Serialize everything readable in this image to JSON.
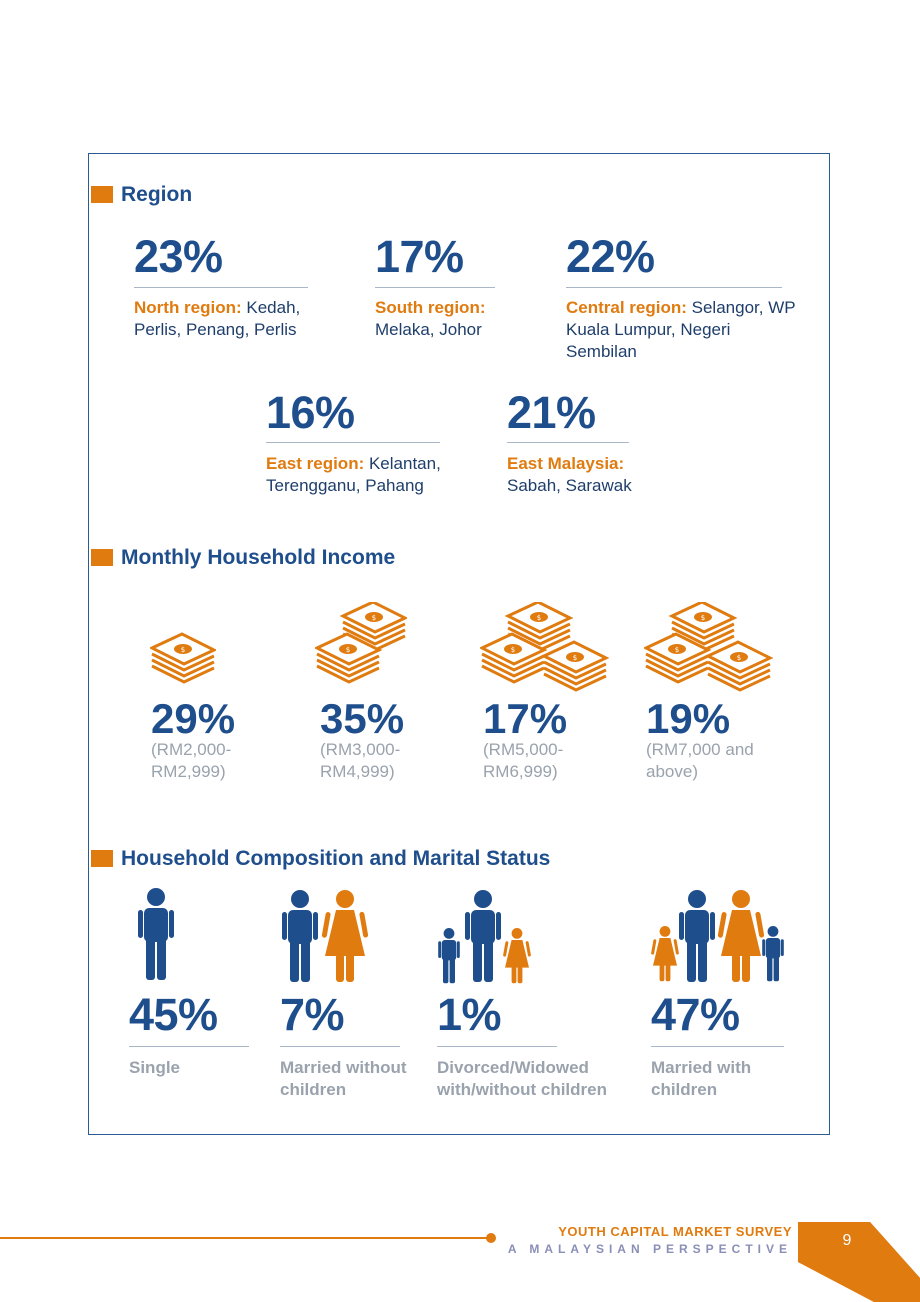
{
  "region": {
    "title": "Region",
    "items": [
      {
        "pct": "23%",
        "label": "North region:",
        "rest": " Kedah, Perlis, Penang, Perlis"
      },
      {
        "pct": "17%",
        "label": "South region:",
        "rest": " Melaka, Johor"
      },
      {
        "pct": "22%",
        "label": "Central region:",
        "rest": " Selangor, WP Kuala Lumpur, Negeri Sembilan"
      },
      {
        "pct": "16%",
        "label": "East region:",
        "rest": " Kelantan, Terengganu, Pahang"
      },
      {
        "pct": "21%",
        "label": "East Malaysia:",
        "rest": " Sabah, Sarawak"
      }
    ]
  },
  "income": {
    "title": "Monthly Household Income",
    "items": [
      {
        "pct": "29%",
        "range": "(RM2,000-RM2,999)"
      },
      {
        "pct": "35%",
        "range": "(RM3,000-RM4,999)"
      },
      {
        "pct": "17%",
        "range": "(RM5,000-RM6,999)"
      },
      {
        "pct": "19%",
        "range": "(RM7,000 and above)"
      }
    ],
    "icon": "money-stack-icon"
  },
  "household": {
    "title": "Household Composition and Marital Status",
    "items": [
      {
        "pct": "45%",
        "label": "Single",
        "icon": "single-person-icon"
      },
      {
        "pct": "7%",
        "label": "Married without children",
        "icon": "couple-icon"
      },
      {
        "pct": "1%",
        "label": "Divorced/Widowed with/without children",
        "icon": "single-parent-icon"
      },
      {
        "pct": "47%",
        "label": "Married with children",
        "icon": "family-icon"
      }
    ]
  },
  "footer": {
    "title": "YOUTH CAPITAL MARKET SURVEY",
    "subtitle": "A MALAYSIAN PERSPECTIVE",
    "page": "9"
  },
  "colors": {
    "blue": "#1f4e8c",
    "orange": "#e07b10",
    "grey": "#9aa3ad"
  }
}
